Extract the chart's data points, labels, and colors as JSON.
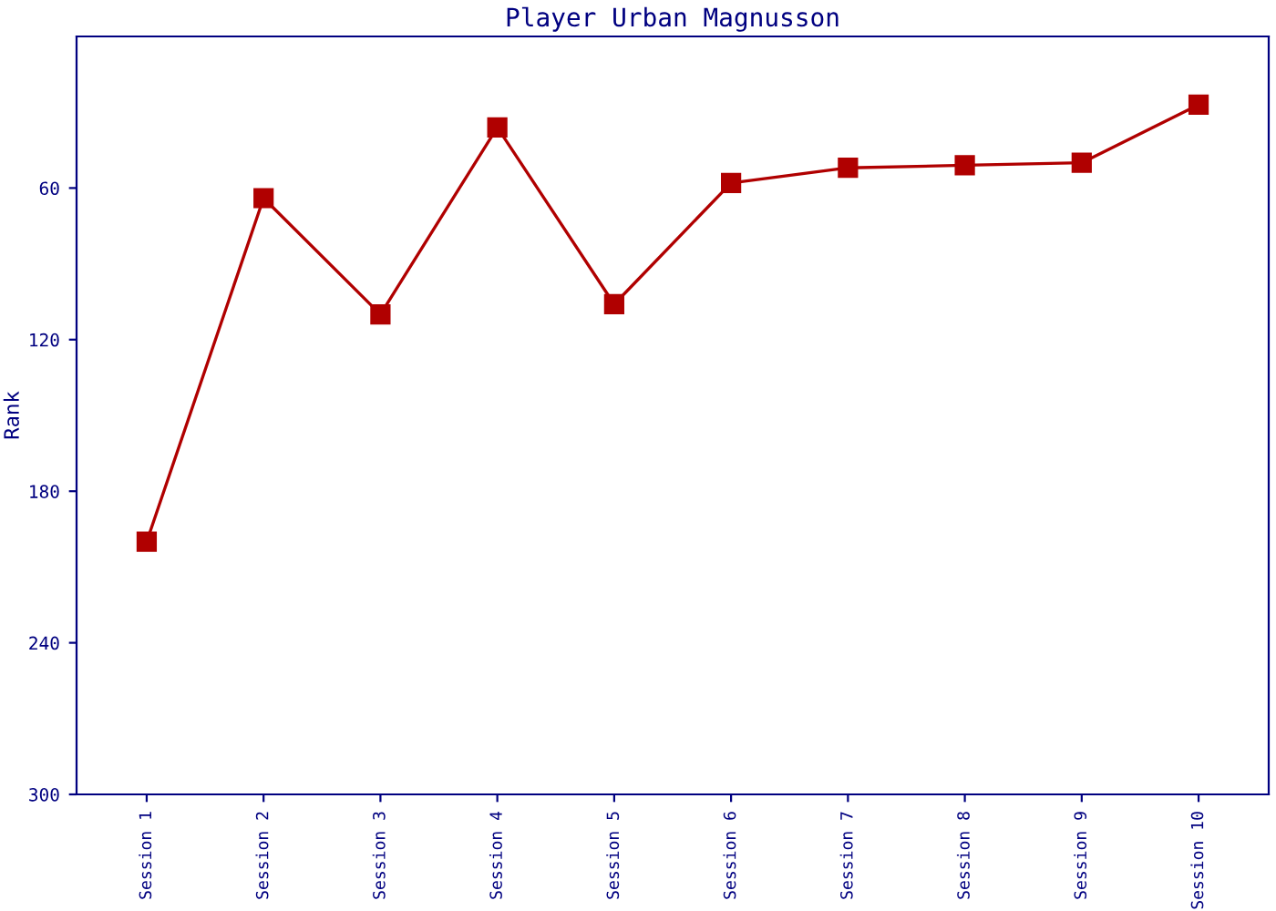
{
  "chart_data": {
    "type": "line",
    "title": "Player Urban Magnusson",
    "ylabel": "Rank",
    "categories": [
      "Session 1",
      "Session 2",
      "Session 3",
      "Session 4",
      "Session 5",
      "Session 6",
      "Session 7",
      "Session 8",
      "Session 9",
      "Session 10"
    ],
    "series": [
      {
        "color": "#b00000",
        "values": [
          200,
          64,
          110,
          36,
          106,
          58,
          52,
          51,
          50,
          27
        ]
      }
    ],
    "ylim": [
      300,
      0
    ],
    "yticks": [
      60,
      120,
      180,
      240,
      300
    ],
    "grid": false,
    "legend": false,
    "marker": "square",
    "line_style": "solid"
  }
}
